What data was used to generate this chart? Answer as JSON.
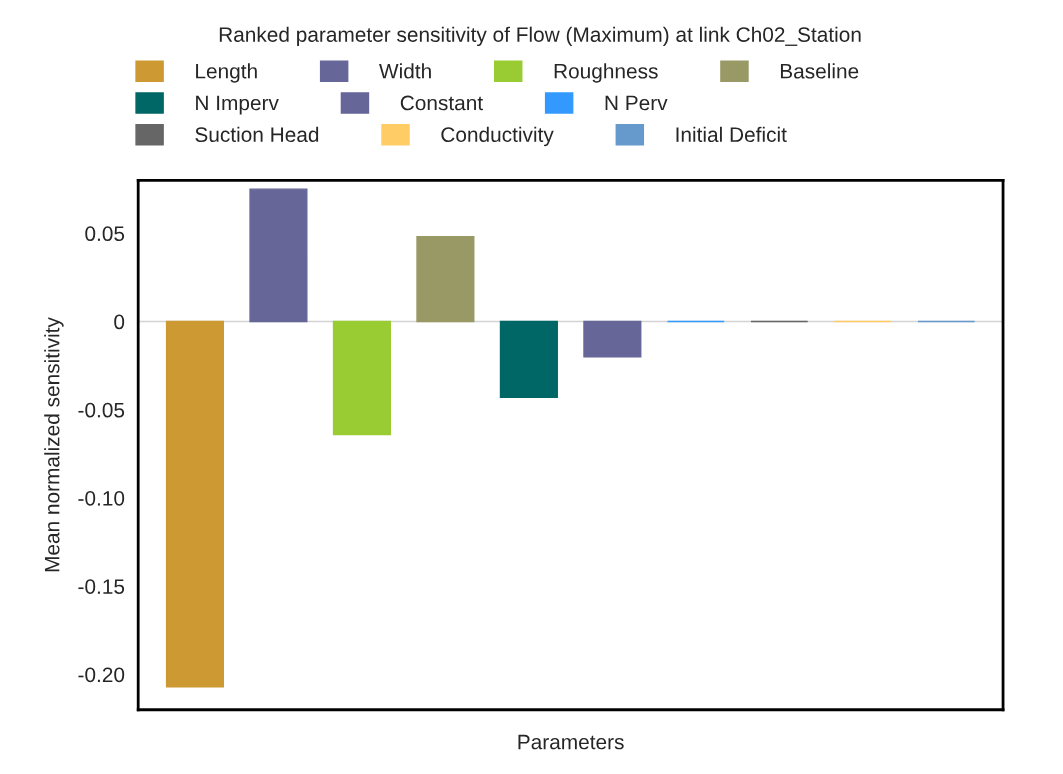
{
  "chart_data": {
    "type": "bar",
    "title": "Ranked parameter sensitivity of Flow (Maximum) at link Ch02_Station",
    "xlabel": "Parameters",
    "ylabel": "Mean normalized sensitivity",
    "categories": [
      null,
      null,
      null,
      null,
      null,
      null,
      null,
      null,
      null,
      null
    ],
    "series": [
      {
        "name": "Length",
        "color": "#cc9933",
        "values": [
          -0.207,
          null,
          null,
          null,
          null,
          null,
          null,
          null,
          null,
          null
        ]
      },
      {
        "name": "Width",
        "color": "#666699",
        "values": [
          null,
          0.075,
          null,
          null,
          null,
          null,
          null,
          null,
          null,
          null
        ]
      },
      {
        "name": "Roughness",
        "color": "#99cc33",
        "values": [
          null,
          null,
          -0.064,
          null,
          null,
          null,
          null,
          null,
          null,
          null
        ]
      },
      {
        "name": "Baseline",
        "color": "#999966",
        "values": [
          null,
          null,
          null,
          0.048,
          null,
          null,
          null,
          null,
          null,
          null
        ]
      },
      {
        "name": "N Imperv",
        "color": "#006666",
        "values": [
          null,
          null,
          null,
          null,
          -0.043,
          null,
          null,
          null,
          null,
          null
        ]
      },
      {
        "name": "Constant",
        "color": "#666699",
        "values": [
          null,
          null,
          null,
          null,
          null,
          -0.02,
          null,
          null,
          null,
          null
        ]
      },
      {
        "name": "N Perv",
        "color": "#3399ff",
        "values": [
          null,
          null,
          null,
          null,
          null,
          null,
          0,
          null,
          null,
          null
        ]
      },
      {
        "name": "Suction Head",
        "color": "#666666",
        "values": [
          null,
          null,
          null,
          null,
          null,
          null,
          null,
          0,
          null,
          null
        ]
      },
      {
        "name": "Conductivity",
        "color": "#ffcc66",
        "values": [
          null,
          null,
          null,
          null,
          null,
          null,
          null,
          null,
          0,
          null
        ]
      },
      {
        "name": "Initial Deficit",
        "color": "#6699cc",
        "values": [
          null,
          null,
          null,
          null,
          null,
          null,
          null,
          null,
          null,
          0
        ]
      }
    ],
    "ylim": [
      -0.22,
      0.08
    ],
    "yticks": [
      {
        "value": 0.05,
        "label": "0.05"
      },
      0,
      {
        "value": -0.05,
        "label": "-0.05"
      },
      {
        "value": -0.1,
        "label": "-0.10"
      },
      {
        "value": -0.15,
        "label": "-0.15"
      },
      {
        "value": -0.2,
        "label": "-0.20"
      }
    ],
    "ref_lines": [
      {
        "axis": "y",
        "value": 0,
        "color": "#d3d3d3"
      }
    ],
    "legend": "top",
    "grid": false
  }
}
